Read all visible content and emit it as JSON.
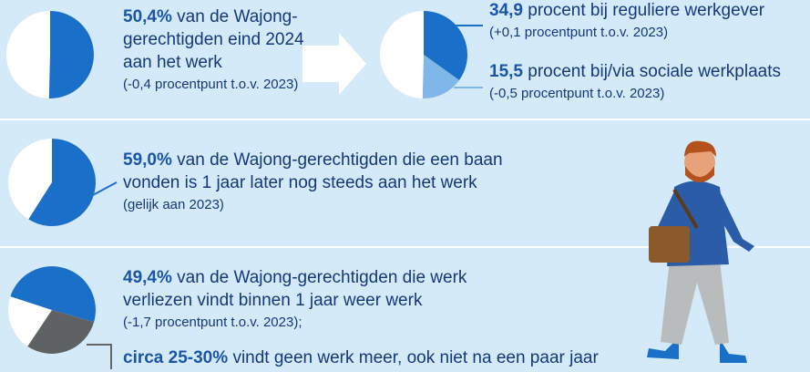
{
  "top": {
    "left": {
      "value": {
        "value": 50.4,
        "label": "50,4%"
      },
      "text": "van de Wajong-gerechtigden eind 2024 aan het werk",
      "note": "(-0,4 procentpunt t.o.v. 2023)"
    },
    "right": [
      {
        "value": {
          "value": 34.9,
          "label": "34,9"
        },
        "text": "procent bij reguliere werkgever",
        "note": "(+0,1 procentpunt t.o.v. 2023)"
      },
      {
        "value": {
          "value": 15.5,
          "label": "15,5"
        },
        "text": "procent bij/via sociale werkplaats",
        "note": "(-0,5 procentpunt t.o.v. 2023)"
      }
    ]
  },
  "middle": {
    "value": {
      "value": 59.0,
      "label": "59,0%"
    },
    "text": "van de Wajong-gerechtigden die een baan vonden is 1 jaar later nog steeds aan het werk",
    "note": "(gelijk aan 2023)"
  },
  "bottom": {
    "value": {
      "value": 49.4,
      "label": "49,4%"
    },
    "text": "van de Wajong-gerechtigden die werk verliezen vindt binnen 1 jaar weer werk",
    "note": "(-1,7 procentpunt t.o.v. 2023);",
    "extra": {
      "low": 25,
      "high": 30,
      "label": "circa 25-30%",
      "text": "vindt geen werk meer, ook niet na een paar jaar"
    }
  }
}
